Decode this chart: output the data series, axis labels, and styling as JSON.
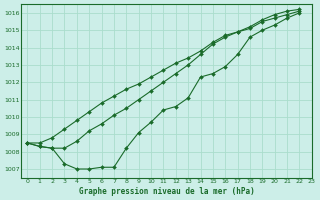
{
  "title": "Graphe pression niveau de la mer (hPa)",
  "background_color": "#cceee8",
  "grid_color": "#aaddcc",
  "line_color": "#1a6b2a",
  "xlim": [
    -0.5,
    23
  ],
  "ylim": [
    1006.5,
    1016.5
  ],
  "yticks": [
    1007,
    1008,
    1009,
    1010,
    1011,
    1012,
    1013,
    1014,
    1015,
    1016
  ],
  "xticks": [
    0,
    1,
    2,
    3,
    4,
    5,
    6,
    7,
    8,
    9,
    10,
    11,
    12,
    13,
    14,
    15,
    16,
    17,
    18,
    19,
    20,
    21,
    22,
    23
  ],
  "series": [
    {
      "x": [
        0,
        1,
        2,
        3,
        4,
        5,
        6,
        7,
        8,
        9,
        10,
        11,
        12,
        13,
        14,
        15,
        16,
        17,
        18,
        19,
        20,
        21,
        22
      ],
      "y": [
        1008.5,
        1008.3,
        1008.2,
        1007.3,
        1007.0,
        1007.0,
        1007.1,
        1007.1,
        1008.2,
        1009.1,
        1009.7,
        1010.4,
        1010.6,
        1011.1,
        1012.3,
        1012.5,
        1012.9,
        1013.6,
        1014.6,
        1015.0,
        1015.3,
        1015.7,
        1016.0
      ]
    },
    {
      "x": [
        0,
        1,
        2,
        3,
        4,
        5,
        6,
        7,
        8,
        9,
        10,
        11,
        12,
        13,
        14,
        15,
        16,
        17,
        18,
        19,
        20,
        21,
        22
      ],
      "y": [
        1008.5,
        1008.3,
        1008.2,
        1008.2,
        1008.6,
        1009.2,
        1009.6,
        1010.1,
        1010.5,
        1011.0,
        1011.5,
        1012.0,
        1012.5,
        1013.0,
        1013.6,
        1014.2,
        1014.6,
        1014.9,
        1015.2,
        1015.6,
        1015.9,
        1016.1,
        1016.2
      ]
    },
    {
      "x": [
        0,
        1,
        2,
        3,
        4,
        5,
        6,
        7,
        8,
        9,
        10,
        11,
        12,
        13,
        14,
        15,
        16,
        17,
        18,
        19,
        20,
        21,
        22
      ],
      "y": [
        1008.5,
        1008.5,
        1008.8,
        1009.3,
        1009.8,
        1010.3,
        1010.8,
        1011.2,
        1011.6,
        1011.9,
        1012.3,
        1012.7,
        1013.1,
        1013.4,
        1013.8,
        1014.3,
        1014.7,
        1014.9,
        1015.1,
        1015.5,
        1015.7,
        1015.9,
        1016.1
      ]
    }
  ]
}
